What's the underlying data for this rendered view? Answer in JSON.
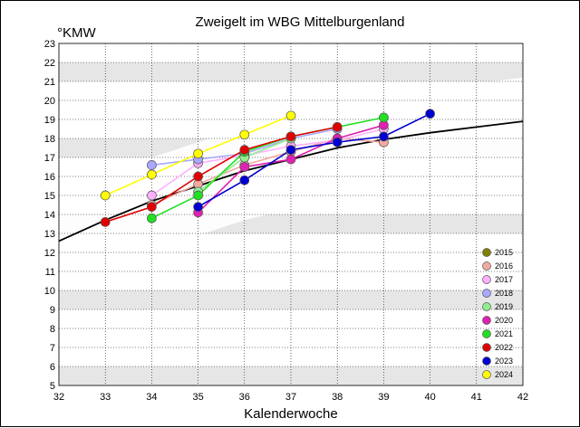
{
  "chart_data": {
    "type": "line",
    "title": "Zweigelt im WBG Mittelburgenland",
    "xlabel": "Kalenderwoche",
    "ylabel": "°KMW",
    "xlim": [
      32,
      42
    ],
    "ylim": [
      5,
      23
    ],
    "x_ticks": [
      "32",
      "33",
      "34",
      "35",
      "36",
      "37",
      "38",
      "39",
      "40",
      "41",
      "42"
    ],
    "y_ticks": [
      "5",
      "6",
      "7",
      "8",
      "9",
      "10",
      "11",
      "12",
      "13",
      "14",
      "15",
      "16",
      "17",
      "18",
      "19",
      "20",
      "21",
      "22",
      "23"
    ],
    "grid": true,
    "legend_position": "bottom-right",
    "reference_curve": {
      "x": [
        32,
        33,
        34,
        35,
        36,
        37,
        38,
        39,
        40,
        41,
        42
      ],
      "y": [
        12.6,
        13.7,
        14.7,
        15.5,
        16.3,
        16.9,
        17.5,
        17.95,
        18.3,
        18.6,
        18.9
      ]
    },
    "series": [
      {
        "name": "2015",
        "color": "#7f7f00",
        "x": [],
        "y": []
      },
      {
        "name": "2016",
        "color": "#f4a9a0",
        "x": [
          34,
          35,
          36,
          37,
          38,
          39
        ],
        "y": [
          14.5,
          15.6,
          16.6,
          17.3,
          18.0,
          17.8
        ]
      },
      {
        "name": "2017",
        "color": "#ffb0ff",
        "x": [
          34,
          35,
          36,
          37,
          38,
          39
        ],
        "y": [
          15.0,
          16.7,
          17.1,
          17.6,
          17.9,
          18.5
        ]
      },
      {
        "name": "2018",
        "color": "#a8a8ff",
        "x": [
          34,
          35,
          36,
          37,
          38
        ],
        "y": [
          16.6,
          16.9,
          17.2,
          18.0,
          18.5
        ]
      },
      {
        "name": "2019",
        "color": "#90ee90",
        "x": [
          35,
          36,
          37
        ],
        "y": [
          15.2,
          17.0,
          18.0
        ]
      },
      {
        "name": "2020",
        "color": "#e020b0",
        "x": [
          35,
          36,
          37,
          38,
          39
        ],
        "y": [
          14.1,
          16.5,
          16.9,
          18.0,
          18.7
        ]
      },
      {
        "name": "2021",
        "color": "#20e020",
        "x": [
          34,
          35,
          36,
          37,
          38,
          39
        ],
        "y": [
          13.8,
          15.0,
          17.3,
          18.1,
          18.6,
          19.1
        ]
      },
      {
        "name": "2022",
        "color": "#e00000",
        "x": [
          33,
          34,
          35,
          36,
          37,
          38
        ],
        "y": [
          13.6,
          14.4,
          16.0,
          17.4,
          18.1,
          18.6
        ]
      },
      {
        "name": "2023",
        "color": "#0000d0",
        "x": [
          35,
          36,
          37,
          38,
          39,
          40
        ],
        "y": [
          14.4,
          15.8,
          17.4,
          17.8,
          18.1,
          19.3
        ]
      },
      {
        "name": "2024",
        "color": "#ffff00",
        "x": [
          33,
          34,
          35,
          36,
          37
        ],
        "y": [
          15.0,
          16.1,
          17.2,
          18.2,
          19.2
        ]
      }
    ]
  }
}
